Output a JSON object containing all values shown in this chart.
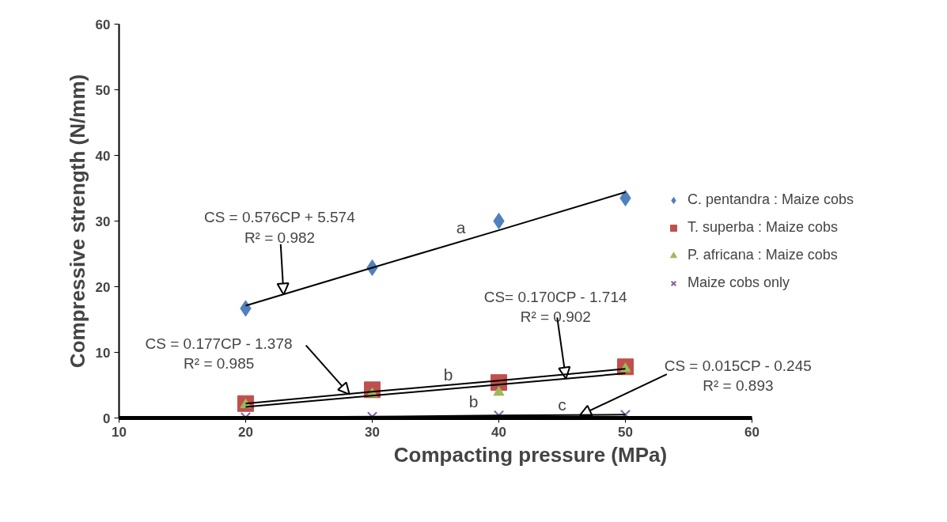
{
  "chart_data": {
    "type": "scatter",
    "xlabel": "Compacting pressure (MPa)",
    "ylabel": "Compressive strength (N/mm)",
    "xlim": [
      10,
      60
    ],
    "xticks": [
      10,
      20,
      30,
      40,
      50,
      60
    ],
    "ylim": [
      0,
      60
    ],
    "yticks": [
      0,
      10,
      20,
      30,
      40,
      50,
      60
    ],
    "grid": false,
    "legend": "right",
    "x": [
      20,
      30,
      40,
      50
    ],
    "series": [
      {
        "name": "C. pentandra : Maize cobs",
        "color": "#4f81bd",
        "marker": "diamond",
        "values": [
          16.7,
          22.9,
          30.0,
          33.5
        ]
      },
      {
        "name": "T. superba : Maize cobs",
        "color": "#c0504d",
        "marker": "square",
        "values": [
          2.2,
          4.3,
          5.4,
          7.8
        ]
      },
      {
        "name": "P. africana : Maize cobs",
        "color": "#9bbb59",
        "marker": "triangle",
        "values": [
          2.0,
          3.7,
          3.9,
          7.5
        ]
      },
      {
        "name": "Maize cobs only",
        "color": "#8064a2",
        "marker": "cross",
        "values": [
          0.1,
          0.2,
          0.4,
          0.5
        ]
      },
      {
        "type": "line",
        "color": "#000000",
        "values": [
          17.1,
          22.9,
          28.6,
          34.4
        ]
      },
      {
        "type": "line",
        "color": "#000000",
        "values": [
          2.2,
          4.0,
          5.7,
          7.5
        ]
      },
      {
        "type": "line",
        "color": "#000000",
        "values": [
          1.7,
          3.4,
          5.1,
          6.8
        ]
      },
      {
        "type": "line",
        "color": "#000000",
        "values": [
          0.1,
          0.2,
          0.4,
          0.5
        ]
      }
    ],
    "annotations": [
      {
        "text": "CS = 0.576CP + 5.574\nR² = 0.982",
        "x": 23,
        "y": 18.8
      },
      {
        "text": "CS= 0.170CP - 1.714\nR² = 0.902",
        "x": 45.3,
        "y": 6.0
      },
      {
        "text": "CS = 0.177CP - 1.378\nR² = 0.985",
        "x": 28.2,
        "y": 3.6
      },
      {
        "text": "CS = 0.015CP - 0.245\nR² = 0.893",
        "x": 46.4,
        "y": 0.4
      },
      {
        "text": "a",
        "x": 37,
        "y": 26.9
      },
      {
        "text": "b",
        "x": 36,
        "y": 5.0
      },
      {
        "text": "b",
        "x": 38,
        "y": 4.7
      },
      {
        "text": "c",
        "x": 45,
        "y": 0.4
      }
    ]
  }
}
